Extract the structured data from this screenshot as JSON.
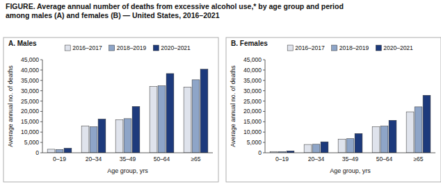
{
  "title": "FIGURE. Average annual number of deaths from excessive alcohol use,* by age group and period among males (A) and females (B) — United States, 2016–2021",
  "chart_data": [
    {
      "type": "bar",
      "title": "A. Males",
      "x_label": "Age group, yrs",
      "y_label": "Average annual no. of deaths",
      "categories": [
        "0–19",
        "20–34",
        "35–49",
        "50–64",
        "≥65"
      ],
      "series": [
        {
          "name": "2016–2017",
          "color": "#dfe3ec",
          "values": [
            1700,
            13000,
            16000,
            32000,
            31800
          ]
        },
        {
          "name": "2018–2019",
          "color": "#8ea5c8",
          "values": [
            1600,
            12600,
            16500,
            32400,
            35300
          ]
        },
        {
          "name": "2020–2021",
          "color": "#1d3a7c",
          "values": [
            2200,
            16300,
            22400,
            38300,
            40400
          ]
        }
      ],
      "ylim": [
        0,
        45000
      ],
      "yticks": [
        0,
        {
          "value": 5000,
          "label": "5,000"
        },
        {
          "value": 10000,
          "label": "10,000"
        },
        {
          "value": 15000,
          "label": "15,000"
        },
        {
          "value": 20000,
          "label": "20,000"
        },
        {
          "value": 25000,
          "label": "25,000"
        },
        {
          "value": 30000,
          "label": "30,000"
        },
        {
          "value": 35000,
          "label": "35,000"
        },
        {
          "value": 40000,
          "label": "40,000"
        },
        {
          "value": 45000,
          "label": "45,000"
        }
      ],
      "grid": false,
      "legend": "top"
    },
    {
      "type": "bar",
      "title": "B. Females",
      "x_label": "Age group, yrs",
      "y_label": "Average annual no. of deaths",
      "categories": [
        "0–19",
        "20–34",
        "35–49",
        "50–64",
        "≥65"
      ],
      "series": [
        {
          "name": "2016–2017",
          "color": "#dfe3ec",
          "values": [
            600,
            4000,
            6600,
            12600,
            19800
          ]
        },
        {
          "name": "2018–2019",
          "color": "#8ea5c8",
          "values": [
            600,
            4100,
            6800,
            12900,
            22200
          ]
        },
        {
          "name": "2020–2021",
          "color": "#1d3a7c",
          "values": [
            900,
            5300,
            9300,
            15700,
            27800
          ]
        }
      ],
      "ylim": [
        0,
        45000
      ],
      "yticks": [
        0,
        {
          "value": 5000,
          "label": "5,000"
        },
        {
          "value": 10000,
          "label": "10,000"
        },
        {
          "value": 15000,
          "label": "15,000"
        },
        {
          "value": 20000,
          "label": "20,000"
        },
        {
          "value": 25000,
          "label": "25,000"
        },
        {
          "value": 30000,
          "label": "30,000"
        },
        {
          "value": 35000,
          "label": "35,000"
        },
        {
          "value": 40000,
          "label": "40,000"
        },
        {
          "value": 45000,
          "label": "45,000"
        }
      ],
      "grid": false,
      "legend": "top"
    }
  ]
}
